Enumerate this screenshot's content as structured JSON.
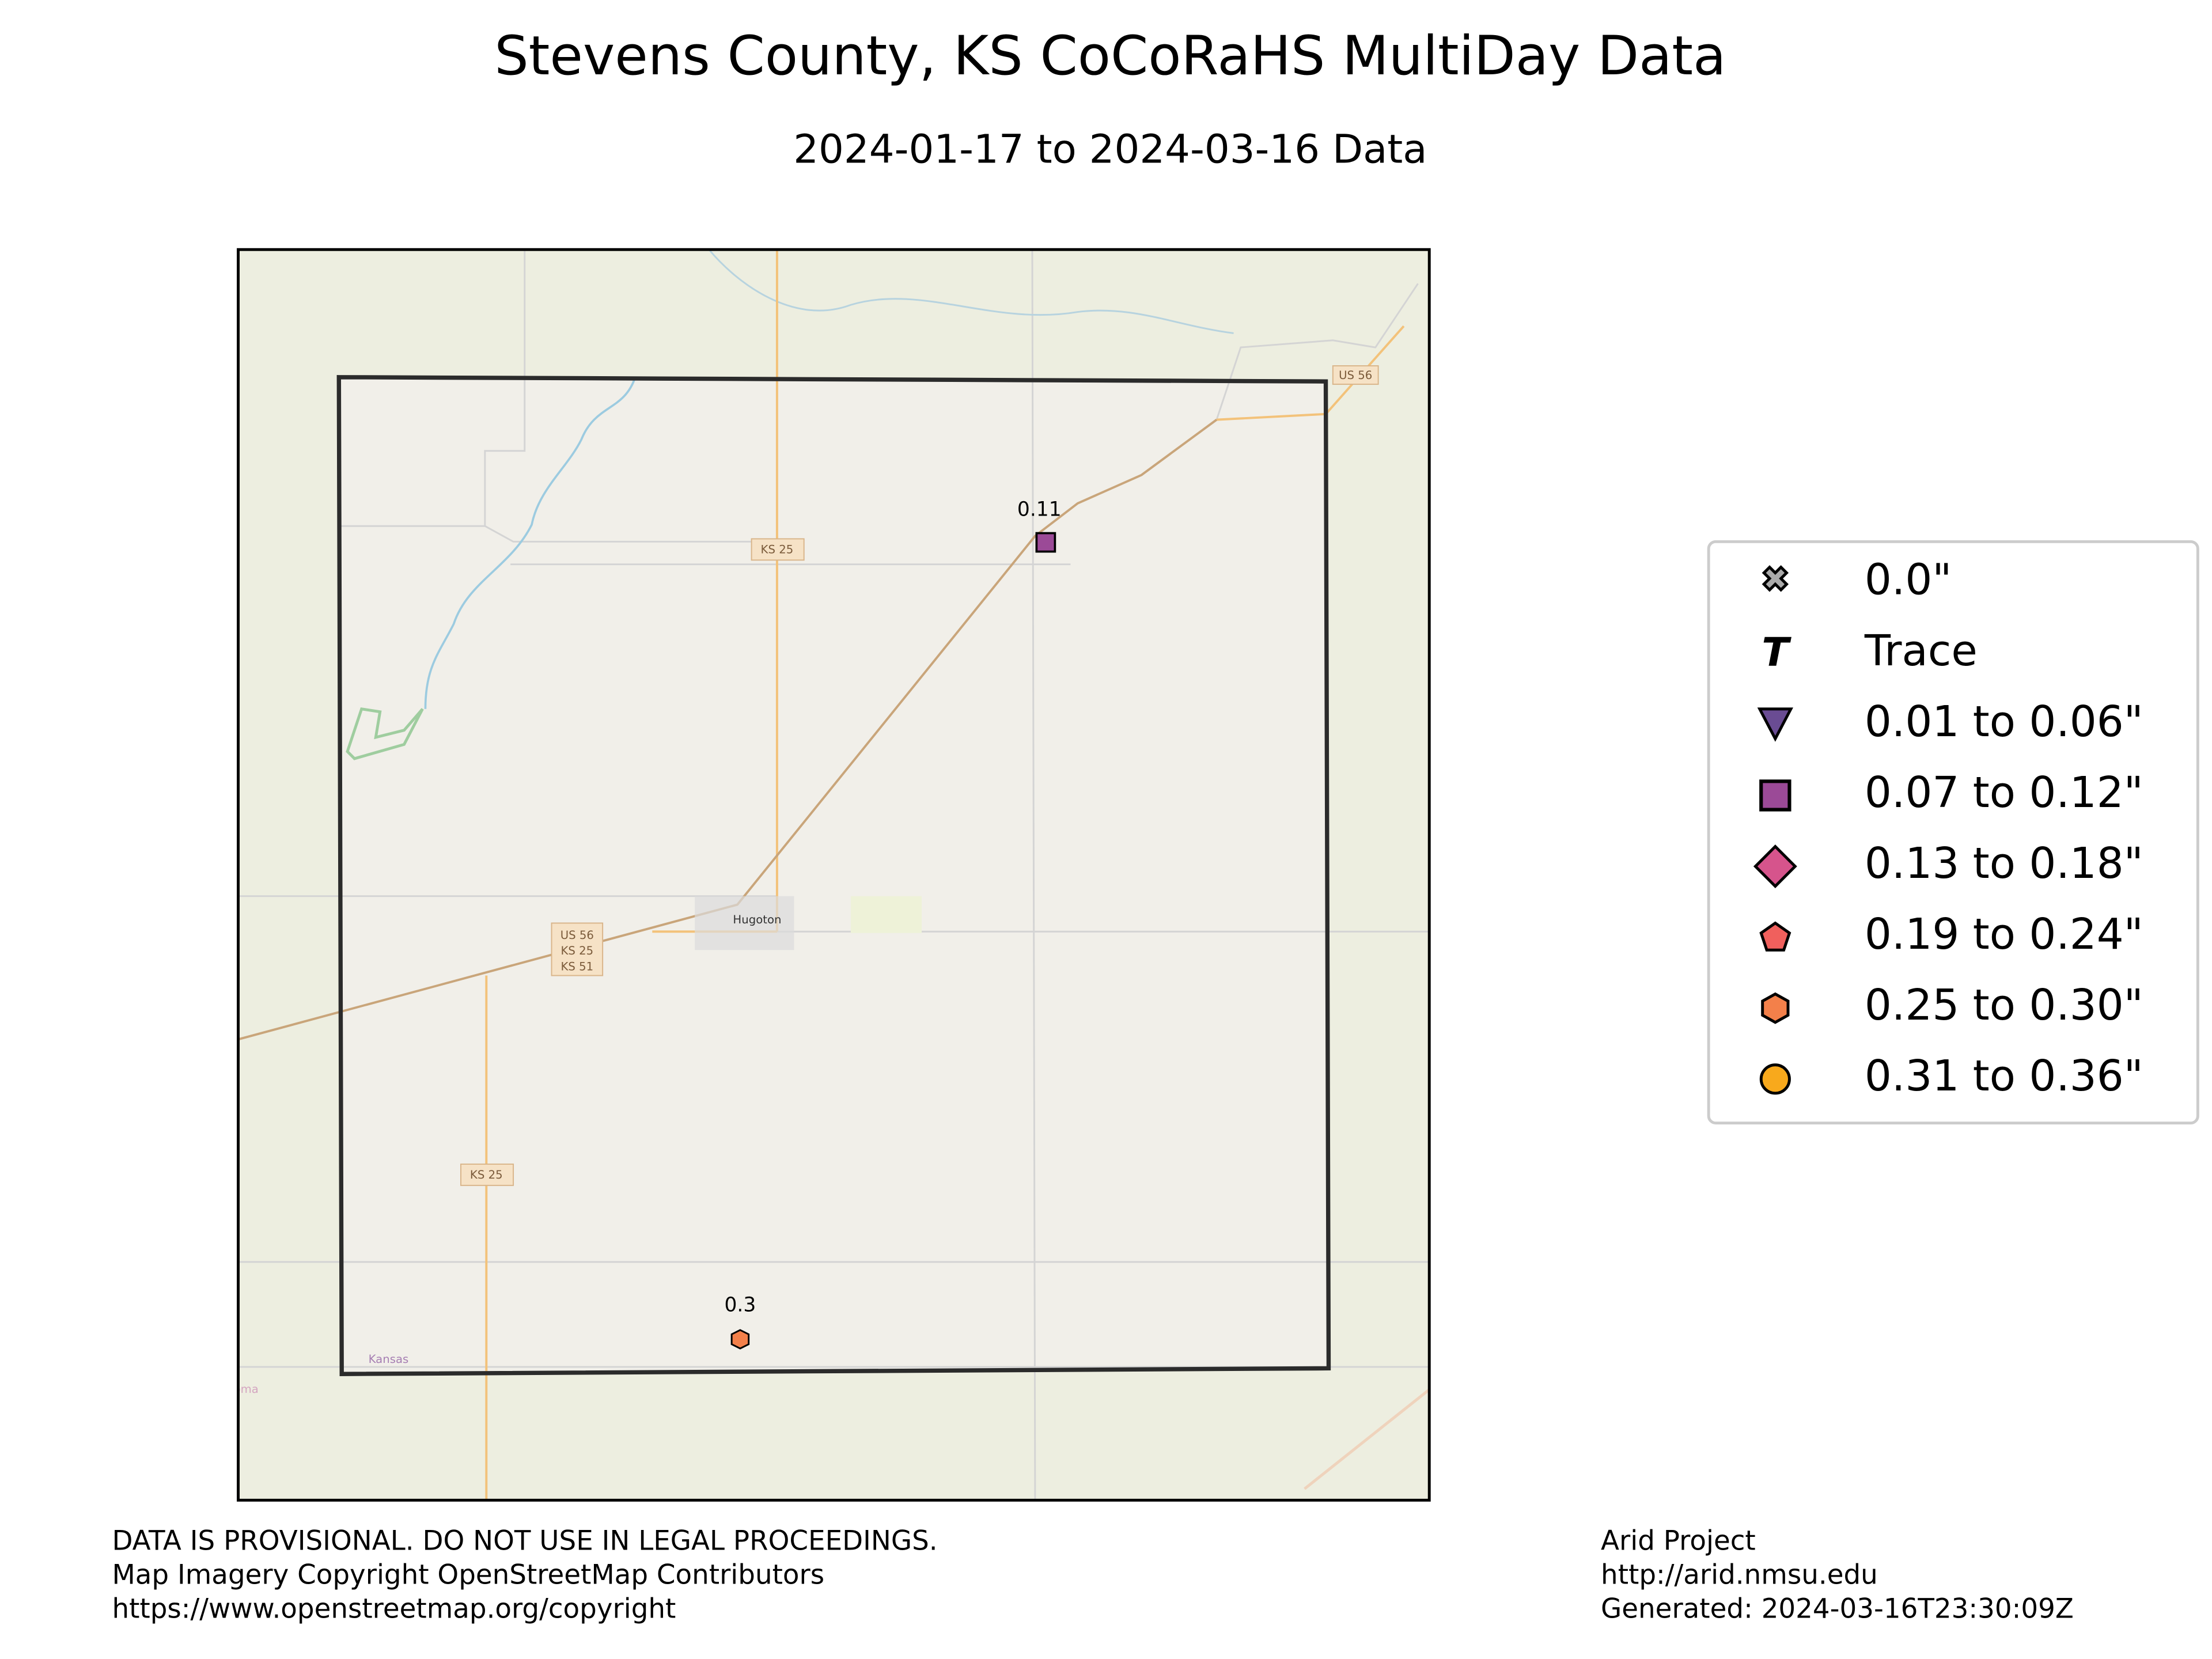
{
  "header": {
    "title": "Stevens County, KS CoCoRaHS MultiDay Data",
    "subtitle": "2024-01-17 to 2024-03-16 Data"
  },
  "map_labels": [
    "KS 25",
    "US 56",
    "US 56",
    "KS 25",
    "KS 51",
    "Hugoton",
    "KS 25",
    "Kansas",
    "Oklahoma"
  ],
  "stations": [
    {
      "value": 0.11
    },
    {
      "value": 0.3
    }
  ],
  "legend": [
    "0.0\"",
    "Trace",
    "0.01 to 0.06\"",
    "0.07 to 0.12\"",
    "0.13 to 0.18\"",
    "0.19 to 0.24\"",
    "0.25 to 0.30\"",
    "0.31 to 0.36\""
  ],
  "footer": {
    "left": [
      "DATA IS PROVISIONAL. DO NOT USE IN LEGAL PROCEEDINGS.",
      "Map Imagery Copyright OpenStreetMap Contributors",
      "https://www.openstreetmap.org/copyright"
    ],
    "right": [
      "Arid Project",
      "http://arid.nmsu.edu",
      "Generated: 2024-03-16T23:30:09Z"
    ]
  }
}
